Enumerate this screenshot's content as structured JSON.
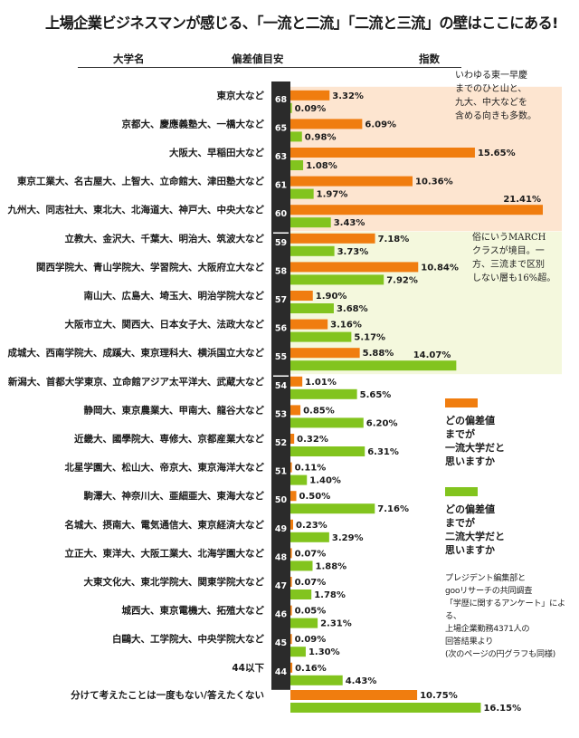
{
  "title": "上場企業ビジネスマンが感じる、「一流と二流」「二流と三流」の壁はここにある!",
  "headers": {
    "university": "大学名",
    "deviation": "偏差値目安",
    "index": "指数"
  },
  "notes": {
    "top": "いわゆる東一早慶\nまでのひと山と、\n九大、中大などを\n含める向きも多数。",
    "middle": "俗にいうMARCH\nクラスが境目。一\n方、三流まで区別\nしない層も16%超。"
  },
  "legend": {
    "orange_label": "どの偏差値\nまでが\n一流大学だと\n思いますか",
    "green_label": "どの偏差値\nまでが\n二流大学だと\n思いますか"
  },
  "source": "プレジデント編集部と\ngooリサーチの共同調査\n「学歴に関するアンケート」による、\n上場企業勤務4371人の\n回答結果より\n(次のページの円グラフも同様)",
  "colors": {
    "orange": "#f07d0f",
    "green": "#82c41e",
    "band_top": "#fde5d0",
    "band_mid": "#f4f8dd",
    "marker": "#2b2b2b"
  },
  "chart_data": {
    "type": "bar",
    "orientation": "horizontal",
    "unit": "%",
    "series": [
      {
        "name": "どの偏差値までが一流大学だと思いますか",
        "color": "#f07d0f"
      },
      {
        "name": "どの偏差値までが二流大学だと思いますか",
        "color": "#82c41e"
      }
    ],
    "rows": [
      {
        "label": "東京大など",
        "dev": "68",
        "first": 3.32,
        "second": 0.09
      },
      {
        "label": "京都大、慶應義塾大、一橋大など",
        "dev": "65",
        "first": 6.09,
        "second": 0.98
      },
      {
        "label": "大阪大、早稲田大など",
        "dev": "63",
        "first": 15.65,
        "second": 1.08
      },
      {
        "label": "東京工業大、名古屋大、上智大、立命館大、津田塾大など",
        "dev": "61",
        "first": 10.36,
        "second": 1.97
      },
      {
        "label": "九州大、同志社大、東北大、北海道大、神戸大、中央大など",
        "dev": "60",
        "first": 21.41,
        "second": 3.43
      },
      {
        "label": "立教大、金沢大、千葉大、明治大、筑波大など",
        "dev": "59",
        "first": 7.18,
        "second": 3.73
      },
      {
        "label": "関西学院大、青山学院大、学習院大、大阪府立大など",
        "dev": "58",
        "first": 10.84,
        "second": 7.92
      },
      {
        "label": "南山大、広島大、埼玉大、明治学院大など",
        "dev": "57",
        "first": 1.9,
        "second": 3.68
      },
      {
        "label": "大阪市立大、関西大、日本女子大、法政大など",
        "dev": "56",
        "first": 3.16,
        "second": 5.17
      },
      {
        "label": "成城大、西南学院大、成蹊大、東京理科大、横浜国立大など",
        "dev": "55",
        "first": 5.88,
        "second": 14.07
      },
      {
        "label": "新潟大、首都大学東京、立命館アジア太平洋大、武蔵大など",
        "dev": "54",
        "first": 1.01,
        "second": 5.65
      },
      {
        "label": "静岡大、東京農業大、甲南大、龍谷大など",
        "dev": "53",
        "first": 0.85,
        "second": 6.2
      },
      {
        "label": "近畿大、國學院大、専修大、京都産業大など",
        "dev": "52",
        "first": 0.32,
        "second": 6.31
      },
      {
        "label": "北星学園大、松山大、帝京大、東京海洋大など",
        "dev": "51",
        "first": 0.11,
        "second": 1.4
      },
      {
        "label": "駒澤大、神奈川大、亜細亜大、東海大など",
        "dev": "50",
        "first": 0.5,
        "second": 7.16
      },
      {
        "label": "名城大、摂南大、電気通信大、東京経済大など",
        "dev": "49",
        "first": 0.23,
        "second": 3.29
      },
      {
        "label": "立正大、東洋大、大阪工業大、北海学園大など",
        "dev": "48",
        "first": 0.07,
        "second": 1.88
      },
      {
        "label": "大東文化大、東北学院大、関東学院大など",
        "dev": "47",
        "first": 0.07,
        "second": 1.78
      },
      {
        "label": "城西大、東京電機大、拓殖大など",
        "dev": "46",
        "first": 0.05,
        "second": 2.31
      },
      {
        "label": "白鷗大、工学院大、中央学院大など",
        "dev": "45",
        "first": 0.09,
        "second": 1.3
      },
      {
        "label": "44以下",
        "dev": "44",
        "first": 0.16,
        "second": 4.43
      },
      {
        "label": "分けて考えたことは一度もない/答えたくない",
        "dev": "",
        "first": 10.75,
        "second": 16.15
      }
    ],
    "xlim": [
      0,
      21.41
    ]
  }
}
